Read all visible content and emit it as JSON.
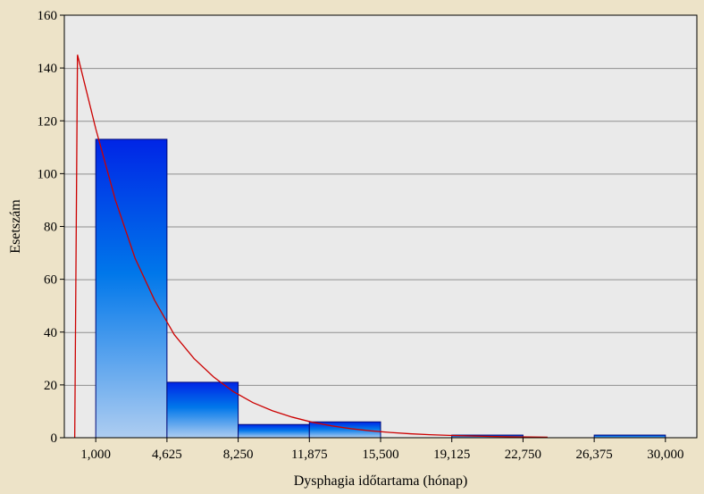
{
  "chart_data": {
    "type": "bar",
    "subtype": "histogram-with-fitted-curve",
    "xlabel": "Dysphagia időtartama (hónap)",
    "ylabel": "Esetszám",
    "x_tick_labels": [
      "1,000",
      "4,625",
      "8,250",
      "11,875",
      "15,500",
      "19,125",
      "22,750",
      "26,375",
      "30,000"
    ],
    "x_ticks": [
      1.0,
      4.625,
      8.25,
      11.875,
      15.5,
      19.125,
      22.75,
      26.375,
      30.0
    ],
    "y_tick_labels": [
      "0",
      "20",
      "40",
      "60",
      "80",
      "100",
      "120",
      "140",
      "160"
    ],
    "y_ticks": [
      0,
      20,
      40,
      60,
      80,
      100,
      120,
      140,
      160
    ],
    "xlim": [
      -0.6,
      31.6
    ],
    "ylim": [
      0,
      160
    ],
    "grid": true,
    "bins": [
      {
        "from": 1.0,
        "to": 4.625,
        "value": 113
      },
      {
        "from": 4.625,
        "to": 8.25,
        "value": 21
      },
      {
        "from": 8.25,
        "to": 11.875,
        "value": 5
      },
      {
        "from": 11.875,
        "to": 15.5,
        "value": 6
      },
      {
        "from": 15.5,
        "to": 19.125,
        "value": 0
      },
      {
        "from": 19.125,
        "to": 22.75,
        "value": 1
      },
      {
        "from": 22.75,
        "to": 26.375,
        "value": 0
      },
      {
        "from": 26.375,
        "to": 30.0,
        "value": 1
      }
    ],
    "fitted_curve": {
      "type": "exponential",
      "points": [
        {
          "x": -0.07,
          "y": 0
        },
        {
          "x": 0.07,
          "y": 145
        },
        {
          "x": 1.0,
          "y": 117
        },
        {
          "x": 2.0,
          "y": 90
        },
        {
          "x": 3.0,
          "y": 68
        },
        {
          "x": 4.0,
          "y": 52
        },
        {
          "x": 5.0,
          "y": 39
        },
        {
          "x": 6.0,
          "y": 30
        },
        {
          "x": 7.0,
          "y": 23
        },
        {
          "x": 8.0,
          "y": 17.5
        },
        {
          "x": 9.0,
          "y": 13.3
        },
        {
          "x": 10.0,
          "y": 10.2
        },
        {
          "x": 11.0,
          "y": 7.8
        },
        {
          "x": 12.0,
          "y": 5.9
        },
        {
          "x": 13.0,
          "y": 4.5
        },
        {
          "x": 14.0,
          "y": 3.4
        },
        {
          "x": 15.0,
          "y": 2.6
        },
        {
          "x": 16.0,
          "y": 2.0
        },
        {
          "x": 17.0,
          "y": 1.5
        },
        {
          "x": 18.0,
          "y": 1.15
        },
        {
          "x": 19.0,
          "y": 0.88
        },
        {
          "x": 20.0,
          "y": 0.67
        },
        {
          "x": 21.0,
          "y": 0.51
        },
        {
          "x": 22.0,
          "y": 0.39
        },
        {
          "x": 23.0,
          "y": 0.3
        },
        {
          "x": 24.0,
          "y": 0.2
        }
      ]
    },
    "colors": {
      "background": "#ede3c8",
      "plot_area": "#eaeaea",
      "grid": "#8f8f8f",
      "bar_top": "#0025e6",
      "bar_mid": "#0077ea",
      "bar_bottom": "#aecdf1",
      "bar_edge": "#000a78",
      "curve": "#cc0000"
    }
  }
}
